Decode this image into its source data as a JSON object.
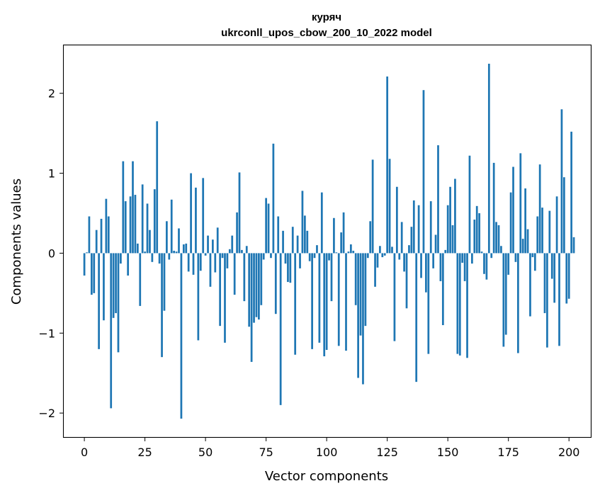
{
  "chart_data": {
    "type": "bar",
    "title": "куряч",
    "subtitle": "ukrconll_upos_cbow_200_10_2022 model",
    "xlabel": "Vector components",
    "ylabel": "Components values",
    "xlim": [
      -8.5,
      209
    ],
    "ylim": [
      -2.3,
      2.6
    ],
    "xticks": [
      0,
      25,
      50,
      75,
      100,
      125,
      150,
      175,
      200
    ],
    "yticks": [
      -2,
      -1,
      0,
      1,
      2
    ],
    "ytick_labels": [
      "−2",
      "−1",
      "0",
      "1",
      "2"
    ],
    "grid": false,
    "bar_color": "#1f77b4",
    "values": [
      -0.28,
      0.01,
      0.46,
      -0.52,
      -0.5,
      0.29,
      -1.2,
      0.43,
      -0.84,
      0.68,
      0.46,
      -1.94,
      -0.81,
      -0.75,
      -1.24,
      -0.13,
      1.15,
      0.65,
      -0.28,
      0.71,
      1.15,
      0.73,
      0.12,
      -0.66,
      0.86,
      0.02,
      0.62,
      0.29,
      -0.11,
      0.8,
      1.65,
      -0.13,
      -1.3,
      -0.72,
      0.4,
      -0.08,
      0.67,
      0.03,
      0.02,
      0.31,
      -2.07,
      0.11,
      0.12,
      -0.23,
      1.0,
      -0.27,
      0.82,
      -1.09,
      -0.22,
      0.94,
      -0.03,
      0.22,
      -0.42,
      0.17,
      -0.24,
      0.32,
      -0.91,
      -0.06,
      -1.12,
      -0.19,
      0.05,
      0.22,
      -0.52,
      0.51,
      1.01,
      0.04,
      -0.6,
      0.09,
      -0.92,
      -1.36,
      -0.87,
      -0.8,
      -0.83,
      -0.65,
      -0.08,
      0.69,
      0.62,
      -0.06,
      1.37,
      -0.76,
      0.46,
      -1.9,
      0.28,
      -0.13,
      -0.36,
      -0.37,
      0.33,
      -1.27,
      0.22,
      -0.19,
      0.78,
      0.47,
      0.28,
      -0.1,
      -1.2,
      -0.06,
      0.1,
      -1.12,
      0.76,
      -1.29,
      -1.21,
      -0.09,
      -0.6,
      0.44,
      0.01,
      -1.16,
      0.26,
      0.51,
      -1.22,
      0.02,
      0.11,
      0.03,
      -0.65,
      -1.56,
      -1.03,
      -1.64,
      -0.91,
      -0.06,
      0.4,
      1.17,
      -0.42,
      -0.18,
      0.09,
      -0.05,
      -0.03,
      2.21,
      1.18,
      0.08,
      -1.1,
      0.83,
      -0.08,
      0.39,
      -0.23,
      -0.69,
      0.1,
      0.33,
      0.66,
      -1.61,
      0.6,
      -0.31,
      2.04,
      -0.49,
      -1.26,
      0.65,
      -0.19,
      0.23,
      1.35,
      -0.35,
      -0.9,
      0.04,
      0.6,
      0.83,
      0.35,
      0.93,
      -1.26,
      -1.28,
      -0.12,
      -0.35,
      -1.31,
      1.22,
      -0.13,
      0.42,
      0.59,
      0.5,
      0.02,
      -0.26,
      -0.33,
      2.37,
      -0.06,
      1.13,
      0.39,
      0.35,
      0.09,
      -1.17,
      -1.02,
      -0.27,
      0.76,
      1.08,
      -0.11,
      -1.25,
      1.25,
      0.18,
      0.81,
      0.3,
      -0.79,
      -0.05,
      -0.22,
      0.46,
      1.11,
      0.57,
      -0.75,
      -1.18,
      0.53,
      -0.32,
      -0.62,
      0.71,
      -1.16,
      1.8,
      0.95,
      -0.63,
      -0.57,
      1.52,
      0.2
    ]
  }
}
